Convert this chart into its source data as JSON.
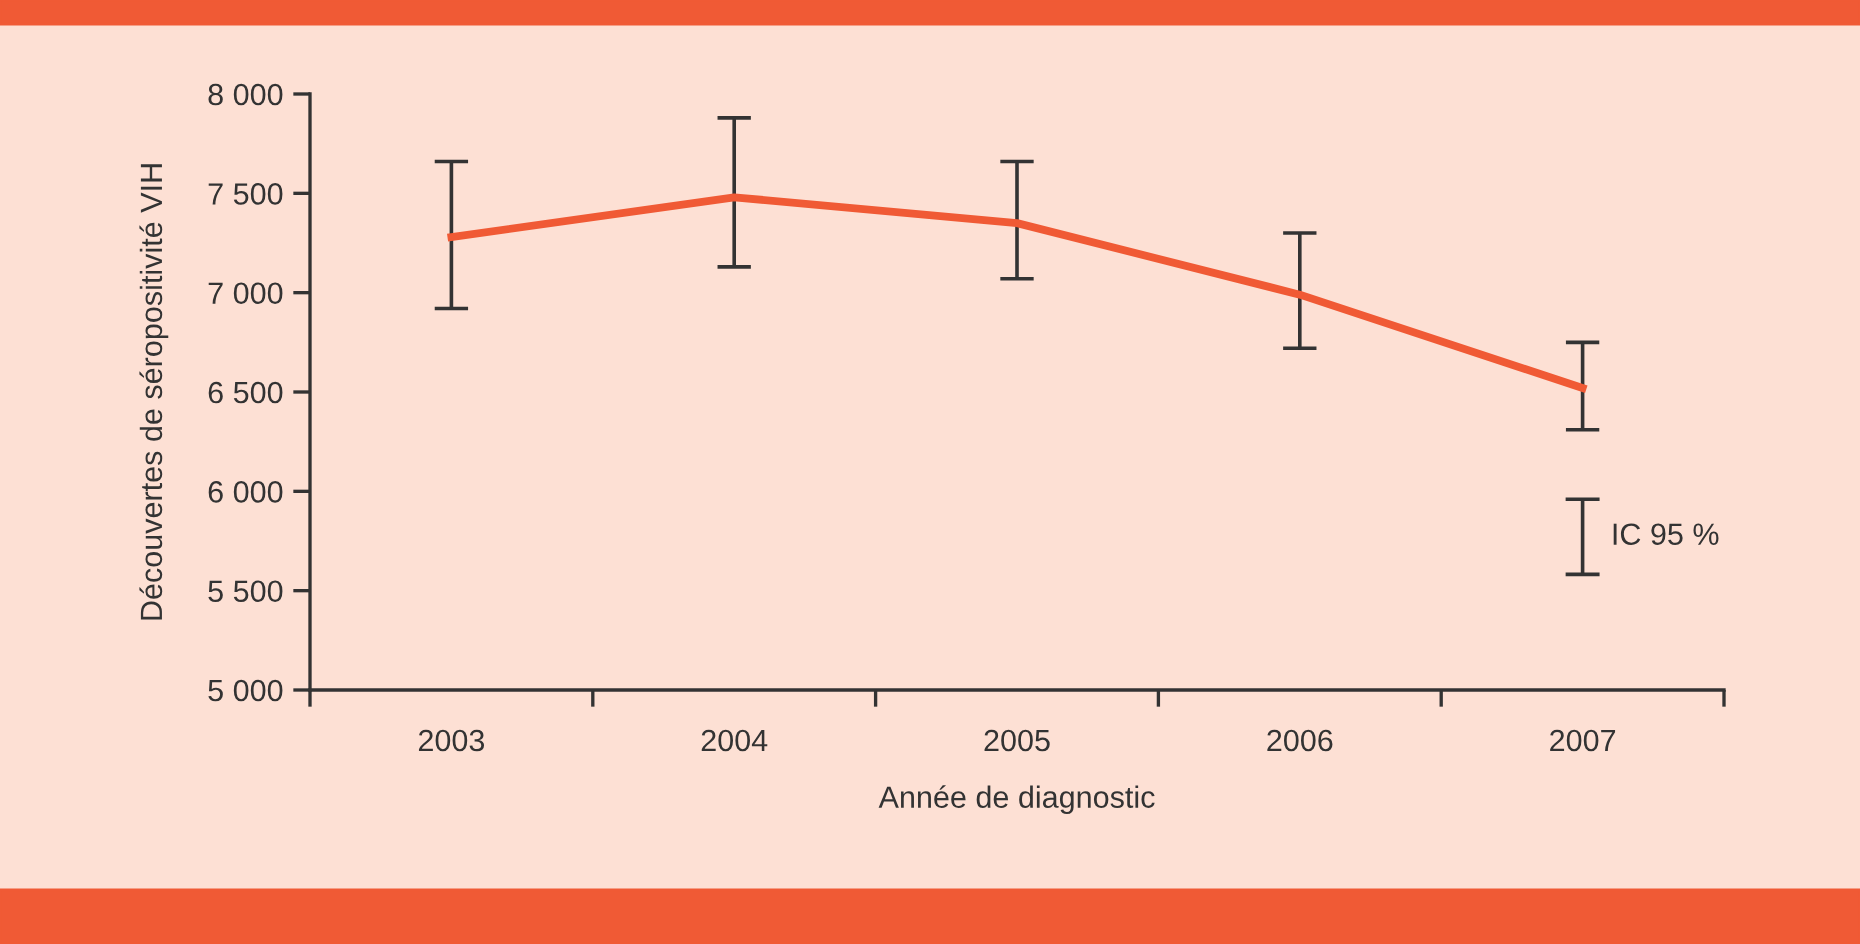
{
  "chart_data": {
    "type": "line",
    "xlabel": "Année de diagnostic",
    "ylabel": "Découvertes de séropositivité VIH",
    "categories": [
      "2003",
      "2004",
      "2005",
      "2006",
      "2007"
    ],
    "series": [
      {
        "color": "#f05a35",
        "values": [
          7280,
          7480,
          7350,
          6990,
          6520
        ],
        "errors": [
          [
            6920,
            7660
          ],
          [
            7130,
            7880
          ],
          [
            7070,
            7660
          ],
          [
            6720,
            7300
          ],
          [
            6310,
            6750
          ]
        ]
      }
    ],
    "ylim": [
      5000,
      8000
    ],
    "yticks": [
      {
        "value": 5000,
        "label": "5 000"
      },
      {
        "value": 5500,
        "label": "5 500"
      },
      {
        "value": 6000,
        "label": "6 000"
      },
      {
        "value": 6500,
        "label": "6 500"
      },
      {
        "value": 7000,
        "label": "7 000"
      },
      {
        "value": 7500,
        "label": "7 500"
      },
      {
        "value": 8000,
        "label": "8 000"
      }
    ],
    "annotations": [
      "IC 95 %"
    ],
    "grid": false,
    "legend": false,
    "marker": "none",
    "line_style": "solid"
  }
}
